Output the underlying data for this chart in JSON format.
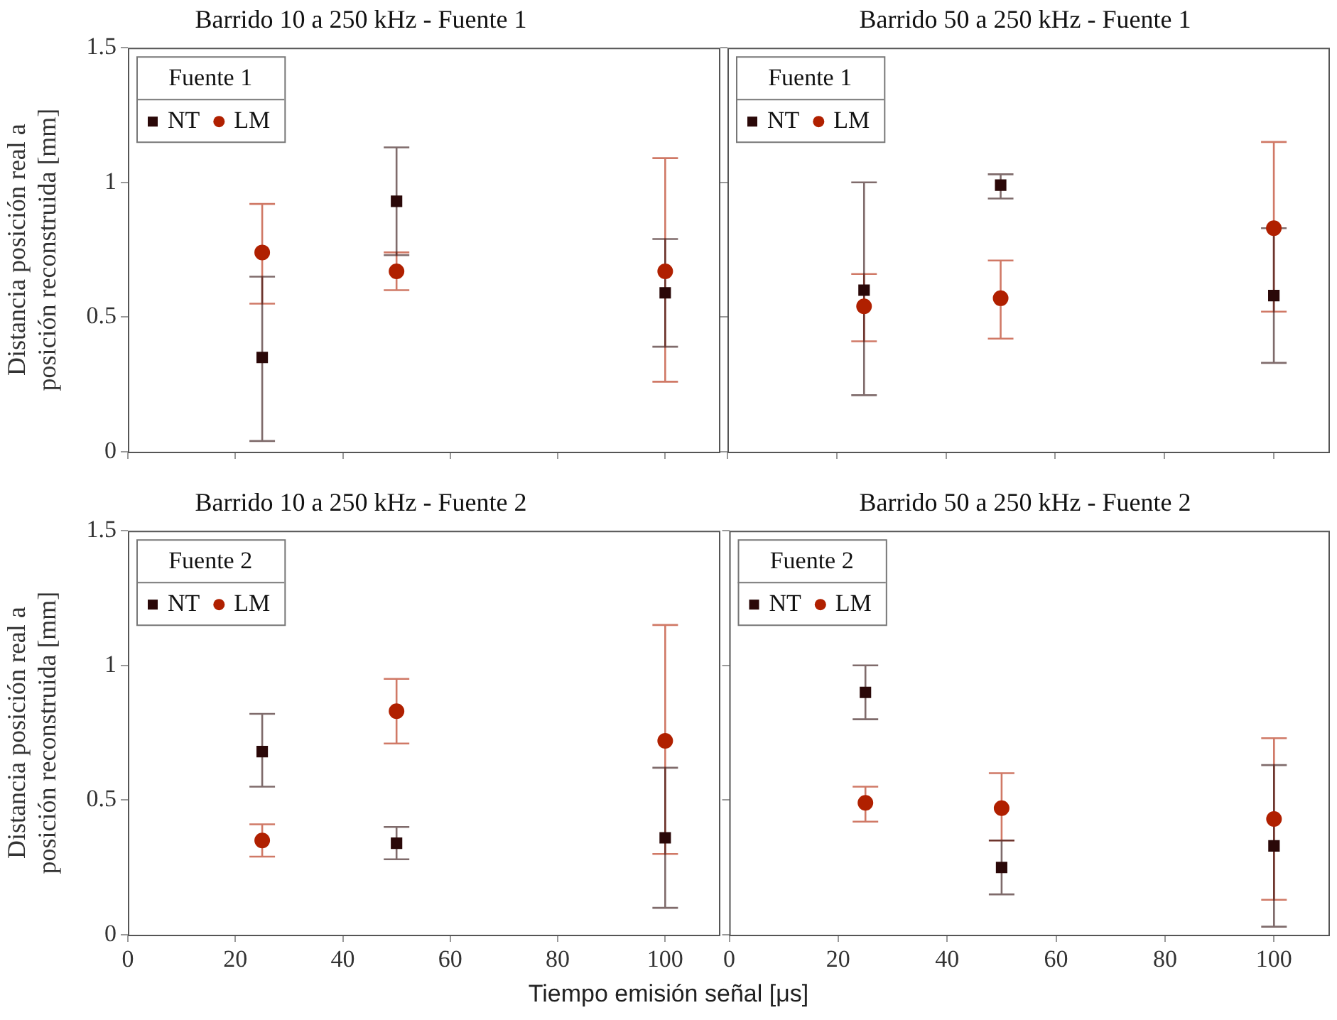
{
  "chart_data": [
    {
      "type": "scatter",
      "title": "Barrido 10 a 250 kHz - Fuente 1",
      "ylabel": "Distancia posición real a posición reconstruida [mm]",
      "legend_title": "Fuente 1",
      "legend": "top left",
      "grid": false,
      "tick_labels": "y",
      "x": [
        25,
        50,
        100
      ],
      "xlim": [
        0,
        110
      ],
      "xticks": [
        0,
        20,
        40,
        60,
        80,
        100
      ],
      "ylim": [
        0,
        1.5
      ],
      "yticks": [
        0,
        0.5,
        1,
        1.5
      ],
      "series": [
        {
          "name": "NT",
          "color": "#2a0808",
          "marker": "square",
          "values": [
            0.35,
            0.93,
            0.59
          ],
          "errors": [
            [
              0.04,
              0.65
            ],
            [
              0.73,
              1.13
            ],
            [
              0.39,
              0.79
            ]
          ]
        },
        {
          "name": "LM",
          "color": "#b02000",
          "marker": "circle",
          "values": [
            0.74,
            0.67,
            0.67
          ],
          "errors": [
            [
              0.55,
              0.92
            ],
            [
              0.6,
              0.74
            ],
            [
              0.26,
              1.09
            ]
          ]
        }
      ]
    },
    {
      "type": "scatter",
      "title": "Barrido 50 a 250 kHz - Fuente 1",
      "legend_title": "Fuente 1",
      "legend": "top left",
      "grid": false,
      "tick_labels": false,
      "x": [
        25,
        50,
        100
      ],
      "xlim": [
        0,
        110
      ],
      "xticks": [
        0,
        20,
        40,
        60,
        80,
        100
      ],
      "ylim": [
        0,
        1.5
      ],
      "yticks": [
        0,
        0.5,
        1,
        1.5
      ],
      "series": [
        {
          "name": "NT",
          "color": "#2a0808",
          "marker": "square",
          "values": [
            0.6,
            0.99,
            0.58
          ],
          "errors": [
            [
              0.21,
              1.0
            ],
            [
              0.94,
              1.03
            ],
            0.25
          ]
        },
        {
          "name": "LM",
          "color": "#b02000",
          "marker": "circle",
          "values": [
            0.54,
            0.57,
            0.83
          ],
          "errors": [
            [
              0.41,
              0.66
            ],
            [
              0.42,
              0.71
            ],
            [
              0.52,
              1.15
            ]
          ]
        }
      ]
    },
    {
      "type": "scatter",
      "title": "Barrido 10 a 250 kHz - Fuente 2",
      "ylabel": "Distancia posición real a posición reconstruida [mm]",
      "xlabel": "Tiempo emisión señal [μs]",
      "legend_title": "Fuente 2",
      "legend": "top left",
      "grid": false,
      "x": [
        25,
        50,
        100
      ],
      "xlim": [
        0,
        110
      ],
      "xticks": [
        0,
        20,
        40,
        60,
        80,
        100
      ],
      "ylim": [
        0,
        1.5
      ],
      "yticks": [
        0,
        0.5,
        1,
        1.5
      ],
      "series": [
        {
          "name": "NT",
          "color": "#2a0808",
          "marker": "square",
          "values": [
            0.68,
            0.34,
            0.36
          ],
          "errors": [
            [
              0.55,
              0.82
            ],
            [
              0.28,
              0.4
            ],
            [
              0.1,
              0.62
            ]
          ]
        },
        {
          "name": "LM",
          "color": "#b02000",
          "marker": "circle",
          "values": [
            0.35,
            0.83,
            0.72
          ],
          "errors": [
            [
              0.29,
              0.41
            ],
            [
              0.71,
              0.95
            ],
            [
              0.3,
              1.15
            ]
          ]
        }
      ]
    },
    {
      "type": "scatter",
      "title": "Barrido 50 a 250 kHz - Fuente 2",
      "legend_title": "Fuente 2",
      "legend": "top left",
      "grid": false,
      "tick_labels": "x",
      "x": [
        25,
        50,
        100
      ],
      "xlim": [
        0,
        110
      ],
      "xticks": [
        0,
        20,
        40,
        60,
        80,
        100
      ],
      "ylim": [
        0,
        1.5
      ],
      "yticks": [
        0,
        0.5,
        1,
        1.5
      ],
      "series": [
        {
          "name": "NT",
          "color": "#2a0808",
          "marker": "square",
          "values": [
            0.9,
            0.25,
            0.33
          ],
          "errors": [
            [
              0.8,
              1.0
            ],
            [
              0.15,
              0.35
            ],
            [
              0.03,
              0.63
            ]
          ]
        },
        {
          "name": "LM",
          "color": "#b02000",
          "marker": "circle",
          "values": [
            0.49,
            0.47,
            0.43
          ],
          "errors": [
            [
              0.42,
              0.55
            ],
            [
              0.35,
              0.6
            ],
            [
              0.13,
              0.73
            ]
          ]
        }
      ]
    }
  ]
}
